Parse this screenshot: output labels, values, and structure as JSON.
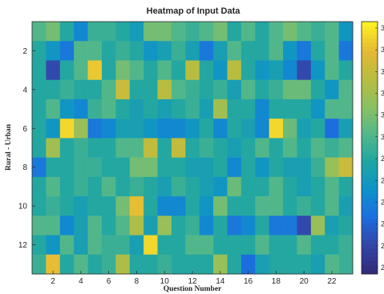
{
  "chart_data": {
    "type": "heatmap",
    "title": "Heatmap of Input Data",
    "xlabel": "Question Number",
    "ylabel": "Rural - Urban",
    "x_ticks": [
      "2",
      "4",
      "6",
      "8",
      "10",
      "12",
      "14",
      "16",
      "18",
      "20",
      "22"
    ],
    "y_ticks": [
      "2",
      "4",
      "6",
      "8",
      "10",
      "12"
    ],
    "x_range": [
      1,
      23
    ],
    "y_range": [
      1,
      13
    ],
    "colormap": "parula",
    "colorbar_labels": [
      "3",
      "3",
      "3",
      "3",
      "3",
      "3",
      "2",
      "2",
      "2",
      "2",
      "2",
      "2"
    ],
    "colorbar_colors": [
      "#fdf024",
      "#e5b935",
      "#b8bd3f",
      "#8cc062",
      "#54b88a",
      "#21a6a2",
      "#0e93c9",
      "#1c6fe0",
      "#3346a8",
      "#302c7a"
    ],
    "values": [
      [
        0.55,
        0.62,
        0.45,
        0.3,
        0.5,
        0.5,
        0.45,
        0.38,
        0.62,
        0.62,
        0.55,
        0.5,
        0.55,
        0.62,
        0.45,
        0.55,
        0.45,
        0.55,
        0.62,
        0.55,
        0.5,
        0.55,
        0.35
      ],
      [
        0.45,
        0.35,
        0.25,
        0.55,
        0.55,
        0.45,
        0.5,
        0.45,
        0.35,
        0.4,
        0.5,
        0.4,
        0.25,
        0.4,
        0.55,
        0.45,
        0.45,
        0.55,
        0.35,
        0.25,
        0.45,
        0.55,
        0.25
      ],
      [
        0.45,
        0.12,
        0.45,
        0.55,
        0.92,
        0.45,
        0.62,
        0.55,
        0.45,
        0.55,
        0.45,
        0.78,
        0.45,
        0.35,
        0.78,
        0.45,
        0.35,
        0.4,
        0.3,
        0.12,
        0.35,
        0.55,
        0.45
      ],
      [
        0.45,
        0.45,
        0.5,
        0.45,
        0.45,
        0.55,
        0.82,
        0.45,
        0.45,
        0.78,
        0.55,
        0.5,
        0.45,
        0.5,
        0.4,
        0.55,
        0.45,
        0.5,
        0.6,
        0.6,
        0.45,
        0.35,
        0.55
      ],
      [
        0.45,
        0.55,
        0.35,
        0.3,
        0.5,
        0.55,
        0.45,
        0.4,
        0.45,
        0.4,
        0.45,
        0.5,
        0.4,
        0.72,
        0.45,
        0.45,
        0.3,
        0.45,
        0.45,
        0.45,
        0.35,
        0.55,
        0.55
      ],
      [
        0.45,
        0.35,
        0.95,
        0.7,
        0.25,
        0.3,
        0.4,
        0.4,
        0.35,
        0.3,
        0.3,
        0.35,
        0.45,
        0.3,
        0.45,
        0.4,
        0.3,
        0.95,
        0.6,
        0.4,
        0.45,
        0.22,
        0.4
      ],
      [
        0.45,
        0.72,
        0.45,
        0.5,
        0.45,
        0.45,
        0.55,
        0.55,
        0.8,
        0.45,
        0.8,
        0.45,
        0.5,
        0.45,
        0.4,
        0.45,
        0.55,
        0.45,
        0.55,
        0.45,
        0.55,
        0.5,
        0.55
      ],
      [
        0.25,
        0.45,
        0.45,
        0.5,
        0.5,
        0.45,
        0.45,
        0.62,
        0.62,
        0.45,
        0.45,
        0.4,
        0.4,
        0.45,
        0.3,
        0.45,
        0.35,
        0.45,
        0.4,
        0.4,
        0.5,
        0.7,
        0.82
      ],
      [
        0.45,
        0.55,
        0.45,
        0.5,
        0.45,
        0.55,
        0.45,
        0.5,
        0.45,
        0.4,
        0.5,
        0.45,
        0.4,
        0.35,
        0.6,
        0.45,
        0.45,
        0.55,
        0.45,
        0.4,
        0.45,
        0.55,
        0.45
      ],
      [
        0.45,
        0.5,
        0.45,
        0.4,
        0.45,
        0.45,
        0.62,
        0.9,
        0.45,
        0.3,
        0.3,
        0.45,
        0.35,
        0.62,
        0.45,
        0.45,
        0.55,
        0.55,
        0.45,
        0.5,
        0.45,
        0.55,
        0.4
      ],
      [
        0.55,
        0.55,
        0.3,
        0.4,
        0.55,
        0.45,
        0.55,
        0.75,
        0.4,
        0.7,
        0.45,
        0.5,
        0.3,
        0.45,
        0.25,
        0.3,
        0.45,
        0.25,
        0.25,
        0.12,
        0.7,
        0.4,
        0.45
      ],
      [
        0.45,
        0.35,
        0.55,
        0.4,
        0.55,
        0.5,
        0.5,
        0.4,
        0.95,
        0.45,
        0.45,
        0.55,
        0.55,
        0.45,
        0.45,
        0.45,
        0.55,
        0.45,
        0.45,
        0.55,
        0.45,
        0.45,
        0.5
      ],
      [
        0.5,
        0.9,
        0.45,
        0.55,
        0.45,
        0.5,
        0.75,
        0.45,
        0.45,
        0.5,
        0.45,
        0.45,
        0.45,
        0.7,
        0.45,
        0.22,
        0.4,
        0.45,
        0.45,
        0.45,
        0.4,
        0.55,
        0.5
      ]
    ]
  }
}
